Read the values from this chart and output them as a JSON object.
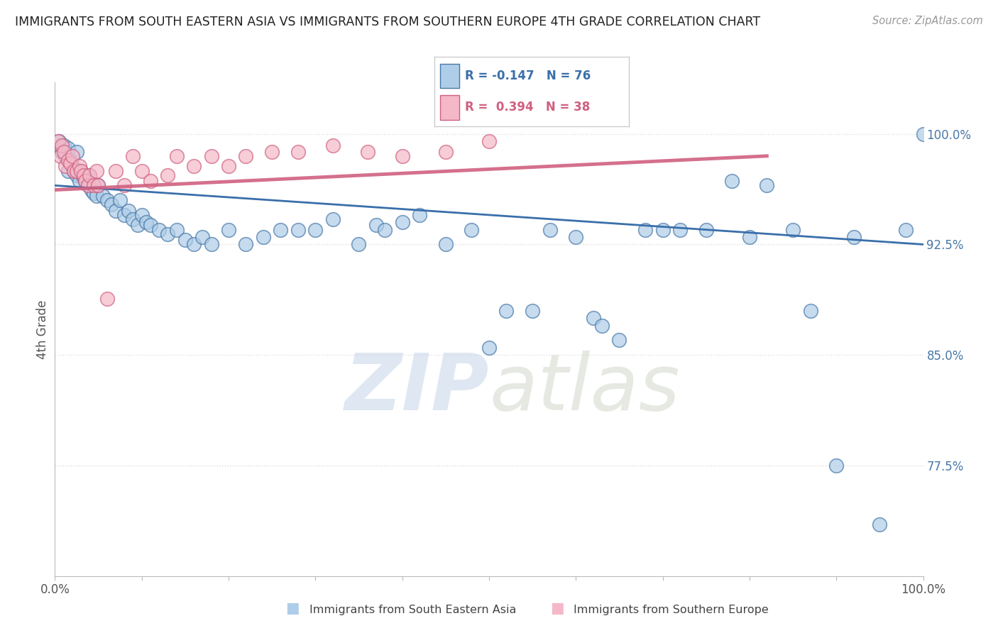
{
  "title": "IMMIGRANTS FROM SOUTH EASTERN ASIA VS IMMIGRANTS FROM SOUTHERN EUROPE 4TH GRADE CORRELATION CHART",
  "source": "Source: ZipAtlas.com",
  "ylabel": "4th Grade",
  "y_ticks": [
    0.775,
    0.85,
    0.925,
    1.0
  ],
  "y_tick_labels": [
    "77.5%",
    "85.0%",
    "92.5%",
    "100.0%"
  ],
  "x_range": [
    0.0,
    1.0
  ],
  "y_range": [
    0.7,
    1.035
  ],
  "blue_R": -0.147,
  "blue_N": 76,
  "pink_R": 0.394,
  "pink_N": 38,
  "legend_label_blue": "Immigrants from South Eastern Asia",
  "legend_label_pink": "Immigrants from Southern Europe",
  "blue_color": "#aecde8",
  "pink_color": "#f4b8c8",
  "blue_edge_color": "#4878a8",
  "pink_edge_color": "#d06080",
  "blue_line_color": "#3a6faa",
  "pink_line_color": "#d06080",
  "blue_scatter_x": [
    0.005,
    0.008,
    0.01,
    0.012,
    0.015,
    0.015,
    0.018,
    0.02,
    0.022,
    0.025,
    0.025,
    0.028,
    0.03,
    0.032,
    0.035,
    0.038,
    0.04,
    0.042,
    0.045,
    0.048,
    0.05,
    0.055,
    0.06,
    0.065,
    0.07,
    0.075,
    0.08,
    0.085,
    0.09,
    0.095,
    0.1,
    0.105,
    0.11,
    0.12,
    0.13,
    0.14,
    0.15,
    0.16,
    0.17,
    0.18,
    0.2,
    0.22,
    0.24,
    0.26,
    0.28,
    0.3,
    0.32,
    0.35,
    0.37,
    0.38,
    0.4,
    0.42,
    0.45,
    0.48,
    0.5,
    0.52,
    0.55,
    0.57,
    0.6,
    0.62,
    0.63,
    0.65,
    0.68,
    0.7,
    0.72,
    0.75,
    0.78,
    0.8,
    0.82,
    0.85,
    0.87,
    0.9,
    0.92,
    0.95,
    0.98,
    1.0
  ],
  "blue_scatter_y": [
    0.995,
    0.988,
    0.992,
    0.985,
    0.99,
    0.975,
    0.982,
    0.978,
    0.975,
    0.988,
    0.972,
    0.968,
    0.975,
    0.972,
    0.968,
    0.965,
    0.972,
    0.962,
    0.96,
    0.958,
    0.965,
    0.958,
    0.955,
    0.952,
    0.948,
    0.955,
    0.945,
    0.948,
    0.942,
    0.938,
    0.945,
    0.94,
    0.938,
    0.935,
    0.932,
    0.935,
    0.928,
    0.925,
    0.93,
    0.925,
    0.935,
    0.925,
    0.93,
    0.935,
    0.935,
    0.935,
    0.942,
    0.925,
    0.938,
    0.935,
    0.94,
    0.945,
    0.925,
    0.935,
    0.855,
    0.88,
    0.88,
    0.935,
    0.93,
    0.875,
    0.87,
    0.86,
    0.935,
    0.935,
    0.935,
    0.935,
    0.968,
    0.93,
    0.965,
    0.935,
    0.88,
    0.775,
    0.93,
    0.735,
    0.935,
    1.0
  ],
  "pink_scatter_x": [
    0.004,
    0.006,
    0.008,
    0.01,
    0.012,
    0.015,
    0.018,
    0.02,
    0.022,
    0.025,
    0.028,
    0.03,
    0.033,
    0.035,
    0.038,
    0.04,
    0.045,
    0.048,
    0.05,
    0.06,
    0.07,
    0.08,
    0.09,
    0.1,
    0.11,
    0.13,
    0.14,
    0.16,
    0.18,
    0.2,
    0.22,
    0.25,
    0.28,
    0.32,
    0.36,
    0.4,
    0.45,
    0.5
  ],
  "pink_scatter_y": [
    0.995,
    0.985,
    0.992,
    0.988,
    0.978,
    0.982,
    0.98,
    0.985,
    0.975,
    0.975,
    0.978,
    0.975,
    0.972,
    0.968,
    0.965,
    0.972,
    0.965,
    0.975,
    0.965,
    0.888,
    0.975,
    0.965,
    0.985,
    0.975,
    0.968,
    0.972,
    0.985,
    0.978,
    0.985,
    0.978,
    0.985,
    0.988,
    0.988,
    0.992,
    0.988,
    0.985,
    0.988,
    0.995
  ],
  "blue_trendline": [
    0.0,
    1.0,
    0.965,
    0.925
  ],
  "pink_trendline": [
    0.0,
    0.82,
    0.962,
    0.985
  ],
  "watermark_zip": "ZIP",
  "watermark_atlas": "atlas",
  "background_color": "#ffffff",
  "grid_color": "#dddddd",
  "tick_label_color": "#4878a8",
  "axis_label_color": "#555555"
}
